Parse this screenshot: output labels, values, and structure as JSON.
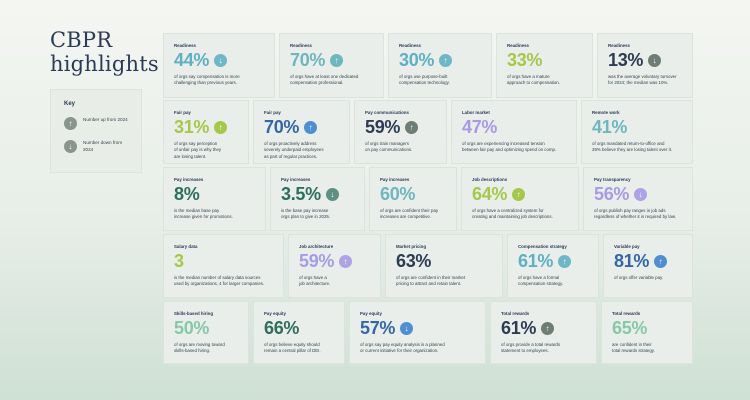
{
  "title": "CBPR highlights",
  "key": {
    "title": "Key",
    "up": {
      "icon": "arrow-up-icon",
      "text": "Number up from 2024"
    },
    "down": {
      "icon": "arrow-down-icon",
      "text": "Number down from 2024"
    }
  },
  "cards": [
    {
      "label": "Readiness",
      "value": "44%",
      "arrow": "down",
      "desc": "of orgs say compensation is more\nchallenging than previous years."
    },
    {
      "label": "Readiness",
      "value": "70%",
      "arrow": "up",
      "desc": "of orgs have at least one dedicated\ncompensation professional."
    },
    {
      "label": "Readiness",
      "value": "30%",
      "arrow": "up",
      "desc": "of orgs use purpose-built\ncompensation technology."
    },
    {
      "label": "Readiness",
      "value": "33%",
      "arrow": "",
      "desc": "of orgs have a mature\napproach to compensation."
    },
    {
      "label": "Readiness",
      "value": "13%",
      "arrow": "down",
      "desc": "was the average voluntary turnover\nfor 2024; the median was 10%."
    },
    {
      "label": "Fair pay",
      "value": "31%",
      "arrow": "up",
      "desc": "of orgs say perception\nof unfair pay is why they\nare losing talent."
    },
    {
      "label": "Fair pay",
      "value": "70%",
      "arrow": "up",
      "desc": "of orgs proactively address\nseverely underpaid employees\nas part of regular practices."
    },
    {
      "label": "Pay communications",
      "value": "59%",
      "arrow": "up",
      "desc": "of orgs train managers\non pay communications."
    },
    {
      "label": "Labor market",
      "value": "47%",
      "arrow": "",
      "desc": "of orgs are experiencing increased tension\nbetween fair pay and optimizing spend on comp."
    },
    {
      "label": "Remote work",
      "value": "41%",
      "arrow": "",
      "desc": "of orgs mandated return-to-office and\n39% believe they are losing talent over it."
    },
    {
      "label": "Pay increases",
      "value": "8%",
      "arrow": "",
      "desc": "is the median base pay\nincrease given for promotions."
    },
    {
      "label": "Pay increases",
      "value": "3.5%",
      "arrow": "down",
      "desc": "is the base pay increase\norgs plan to give in 2025."
    },
    {
      "label": "Pay increases",
      "value": "60%",
      "arrow": "",
      "desc": "of orgs are confident their pay\nincreases are competitive."
    },
    {
      "label": "Job descriptions",
      "value": "64%",
      "arrow": "up",
      "desc": "of orgs have a centralized system for\ncreating and maintaining job descriptions."
    },
    {
      "label": "Pay transparency",
      "value": "56%",
      "arrow": "down",
      "desc": "of orgs publish pay ranges in job ads\nregardless of whether it is required by law."
    },
    {
      "label": "Salary data",
      "value": "3",
      "arrow": "",
      "desc": "is the median number of salary data sources\nused by organizations, 4 for larger companies."
    },
    {
      "label": "Job architecture",
      "value": "59%",
      "arrow": "up",
      "desc": "of orgs have a\njob architecture."
    },
    {
      "label": "Market pricing",
      "value": "63%",
      "arrow": "",
      "desc": "of orgs are confident in their market\npricing to attract and retain talent."
    },
    {
      "label": "Compensation strategy",
      "value": "61%",
      "arrow": "up",
      "desc": "of orgs have a formal\ncompensation strategy."
    },
    {
      "label": "Variable pay",
      "value": "81%",
      "arrow": "up",
      "desc": "of orgs offer variable pay."
    },
    {
      "label": "Skills-based hiring",
      "value": "50%",
      "arrow": "",
      "desc": "of orgs are moving toward\nskills-based hiring."
    },
    {
      "label": "Pay equity",
      "value": "66%",
      "arrow": "",
      "desc": "of orgs believe equity should\nremain a central pillar of DEI."
    },
    {
      "label": "Pay equity",
      "value": "57%",
      "arrow": "down",
      "desc": "of orgs say pay equity analysis is a planned\nor current initiative for their organization."
    },
    {
      "label": "Total rewards",
      "value": "61%",
      "arrow": "up",
      "desc": "of orgs provide a total rewards\nstatement to employees."
    },
    {
      "label": "Total rewards",
      "value": "65%",
      "arrow": "",
      "desc": "are confident in their\ntotal rewards strategy."
    }
  ]
}
